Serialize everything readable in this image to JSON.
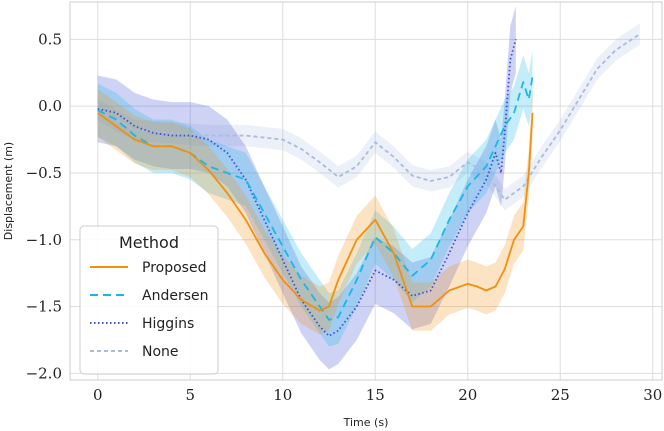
{
  "chart_data": {
    "type": "line",
    "title": "",
    "xlabel": "Time (s)",
    "ylabel": "Displacement (m)",
    "xlim": [
      -1.5,
      30.5
    ],
    "ylim": [
      -2.05,
      0.78
    ],
    "xticks": [
      0,
      5,
      10,
      15,
      20,
      25,
      30
    ],
    "yticks": [
      -2.0,
      -1.5,
      -1.0,
      -0.5,
      0.0,
      0.5
    ],
    "xtick_labels": [
      "0",
      "5",
      "10",
      "15",
      "20",
      "25",
      "30"
    ],
    "ytick_labels": [
      "−2.0",
      "−1.5",
      "−1.0",
      "−0.5",
      "0.0",
      "0.5"
    ],
    "grid": true,
    "legend": {
      "title": "Method",
      "location": "lower-left"
    },
    "series": [
      {
        "name": "None",
        "color": "#aabbdd",
        "dash": "4 3",
        "band_opacity": 0.22,
        "x": [
          0,
          2,
          4,
          6,
          8,
          10,
          11,
          12,
          13,
          14,
          15,
          16,
          17,
          18,
          19,
          20,
          21,
          22,
          23,
          24,
          25,
          26,
          27,
          28,
          29.3
        ],
        "y": [
          -0.03,
          -0.18,
          -0.2,
          -0.22,
          -0.22,
          -0.25,
          -0.32,
          -0.42,
          -0.53,
          -0.45,
          -0.27,
          -0.38,
          -0.52,
          -0.56,
          -0.53,
          -0.42,
          -0.5,
          -0.7,
          -0.6,
          -0.38,
          -0.18,
          0.05,
          0.28,
          0.42,
          0.54
        ],
        "half_width": 0.08
      },
      {
        "name": "Higgins",
        "color": "#3b4fd6",
        "dash": "1.5 2.5",
        "band_opacity": 0.25,
        "x": [
          0,
          1,
          2,
          3,
          4,
          5,
          6,
          7,
          8,
          9,
          10,
          11,
          12,
          12.5,
          13,
          14,
          15,
          16,
          17,
          18,
          19,
          20,
          21,
          21.5,
          21.8,
          22,
          22.3,
          22.6
        ],
        "y": [
          -0.02,
          -0.05,
          -0.15,
          -0.2,
          -0.22,
          -0.22,
          -0.25,
          -0.35,
          -0.55,
          -0.85,
          -1.15,
          -1.45,
          -1.65,
          -1.72,
          -1.68,
          -1.5,
          -1.23,
          -1.3,
          -1.42,
          -1.38,
          -1.1,
          -0.8,
          -0.55,
          -0.35,
          -0.5,
          -0.2,
          0.35,
          0.5
        ],
        "half_width": 0.25
      },
      {
        "name": "Andersen",
        "color": "#18b8e6",
        "dash": "8 5",
        "band_opacity": 0.25,
        "x": [
          0,
          1,
          2,
          3,
          4,
          5,
          6,
          7,
          8,
          9,
          10,
          11,
          12,
          12.5,
          13,
          14,
          15,
          16,
          17,
          18,
          19,
          20,
          21,
          21.5,
          22,
          22.5,
          23,
          23.3,
          23.5
        ],
        "y": [
          -0.03,
          -0.1,
          -0.22,
          -0.3,
          -0.3,
          -0.35,
          -0.45,
          -0.5,
          -0.55,
          -0.8,
          -1.05,
          -1.3,
          -1.5,
          -1.6,
          -1.58,
          -1.3,
          -0.98,
          -1.1,
          -1.27,
          -1.15,
          -0.85,
          -0.6,
          -0.45,
          -0.3,
          -0.15,
          -0.05,
          0.18,
          0.05,
          0.22
        ],
        "half_width": 0.2
      },
      {
        "name": "Proposed",
        "color": "#f0900e",
        "dash": "",
        "band_opacity": 0.25,
        "x": [
          0,
          1,
          2,
          3,
          4,
          5,
          6,
          7,
          8,
          9,
          10,
          11,
          12,
          12.5,
          13,
          14,
          15,
          16,
          17,
          18,
          19,
          20,
          20.5,
          21,
          21.5,
          22,
          22.5,
          23,
          23.3,
          23.5
        ],
        "y": [
          -0.05,
          -0.15,
          -0.25,
          -0.3,
          -0.3,
          -0.35,
          -0.48,
          -0.65,
          -0.85,
          -1.1,
          -1.3,
          -1.45,
          -1.53,
          -1.5,
          -1.3,
          -1.0,
          -0.85,
          -1.1,
          -1.5,
          -1.5,
          -1.38,
          -1.33,
          -1.35,
          -1.38,
          -1.35,
          -1.22,
          -1.0,
          -0.9,
          -0.5,
          -0.05
        ],
        "half_width": 0.18
      }
    ],
    "legend_order": [
      "Proposed",
      "Andersen",
      "Higgins",
      "None"
    ]
  }
}
